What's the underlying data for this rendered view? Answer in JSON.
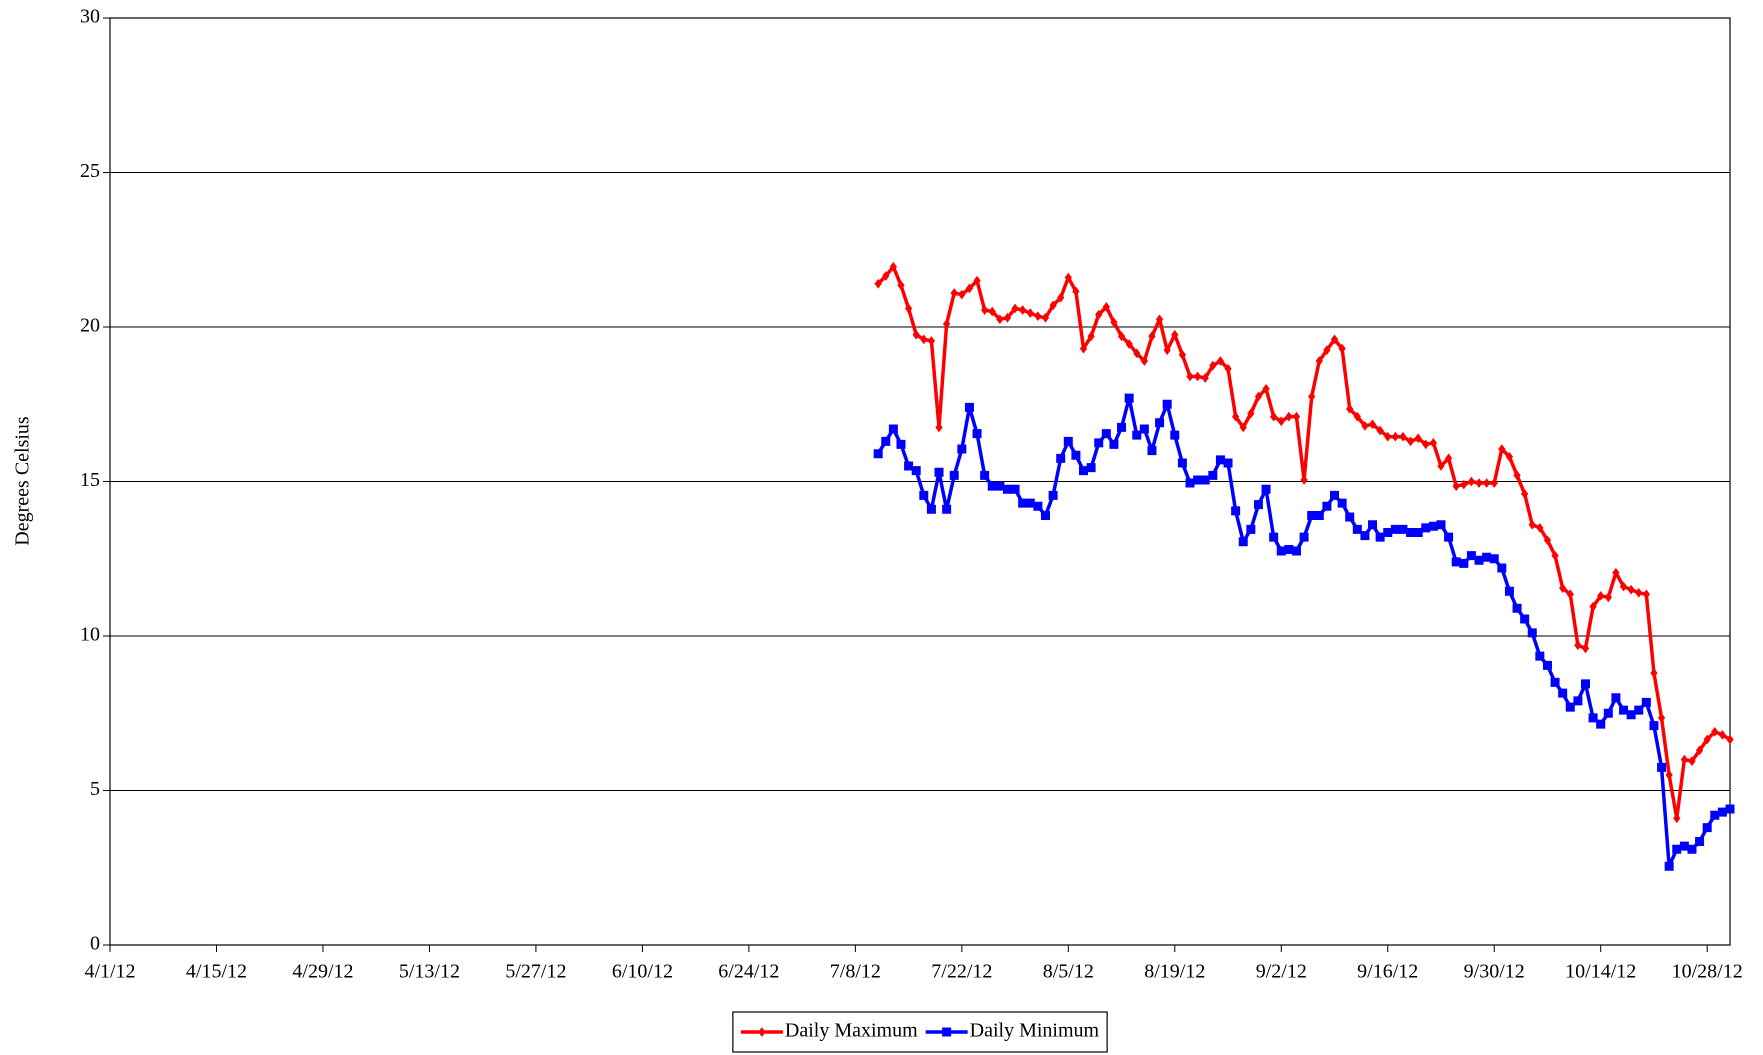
{
  "chart_data": {
    "type": "line",
    "y_label": "Degrees Celsius",
    "x": [
      "7/11/12",
      "7/12/12",
      "7/13/12",
      "7/14/12",
      "7/15/12",
      "7/16/12",
      "7/17/12",
      "7/18/12",
      "7/19/12",
      "7/20/12",
      "7/21/12",
      "7/22/12",
      "7/23/12",
      "7/24/12",
      "7/25/12",
      "7/26/12",
      "7/27/12",
      "7/28/12",
      "7/29/12",
      "7/30/12",
      "7/31/12",
      "8/1/12",
      "8/2/12",
      "8/3/12",
      "8/4/12",
      "8/5/12",
      "8/6/12",
      "8/7/12",
      "8/8/12",
      "8/9/12",
      "8/10/12",
      "8/11/12",
      "8/12/12",
      "8/13/12",
      "8/14/12",
      "8/15/12",
      "8/16/12",
      "8/17/12",
      "8/18/12",
      "8/19/12",
      "8/20/12",
      "8/21/12",
      "8/22/12",
      "8/23/12",
      "8/24/12",
      "8/25/12",
      "8/26/12",
      "8/27/12",
      "8/28/12",
      "8/29/12",
      "8/30/12",
      "8/31/12",
      "9/1/12",
      "9/2/12",
      "9/3/12",
      "9/4/12",
      "9/5/12",
      "9/6/12",
      "9/7/12",
      "9/8/12",
      "9/9/12",
      "9/10/12",
      "9/11/12",
      "9/12/12",
      "9/13/12",
      "9/14/12",
      "9/15/12",
      "9/16/12",
      "9/17/12",
      "9/18/12",
      "9/19/12",
      "9/20/12",
      "9/21/12",
      "9/22/12",
      "9/23/12",
      "9/24/12",
      "9/25/12",
      "9/26/12",
      "9/27/12",
      "9/28/12",
      "9/29/12",
      "9/30/12",
      "10/1/12",
      "10/2/12",
      "10/3/12",
      "10/4/12",
      "10/5/12",
      "10/6/12",
      "10/7/12",
      "10/8/12",
      "10/9/12",
      "10/10/12",
      "10/11/12",
      "10/12/12",
      "10/13/12",
      "10/14/12",
      "10/15/12",
      "10/16/12",
      "10/17/12",
      "10/18/12",
      "10/19/12",
      "10/20/12",
      "10/21/12",
      "10/22/12",
      "10/23/12",
      "10/24/12",
      "10/25/12",
      "10/26/12",
      "10/27/12",
      "10/28/12",
      "10/29/12",
      "10/30/12",
      "10/31/12"
    ],
    "series": [
      {
        "name": "Daily Maximum",
        "color": "#ff0000",
        "marker": "diamond",
        "values": [
          21.4,
          21.65,
          21.95,
          21.35,
          20.6,
          19.75,
          19.6,
          19.55,
          16.75,
          20.1,
          21.1,
          21.05,
          21.25,
          21.5,
          20.55,
          20.5,
          20.25,
          20.3,
          20.6,
          20.55,
          20.45,
          20.35,
          20.3,
          20.7,
          20.95,
          21.6,
          21.15,
          19.3,
          19.7,
          20.4,
          20.65,
          20.15,
          19.7,
          19.45,
          19.15,
          18.9,
          19.7,
          20.25,
          19.25,
          19.75,
          19.1,
          18.4,
          18.4,
          18.35,
          18.75,
          18.9,
          18.65,
          17.1,
          16.75,
          17.2,
          17.75,
          18.0,
          17.1,
          16.95,
          17.1,
          17.1,
          15.05,
          17.75,
          18.9,
          19.25,
          19.6,
          19.3,
          17.35,
          17.1,
          16.8,
          16.85,
          16.65,
          16.45,
          16.45,
          16.45,
          16.3,
          16.4,
          16.2,
          16.25,
          15.5,
          15.75,
          14.85,
          14.9,
          15.0,
          14.95,
          14.95,
          14.95,
          16.05,
          15.8,
          15.2,
          14.6,
          13.6,
          13.5,
          13.1,
          12.6,
          11.55,
          11.35,
          9.7,
          9.6,
          10.95,
          11.3,
          11.25,
          12.05,
          11.6,
          11.5,
          11.4,
          11.35,
          8.8,
          7.35,
          5.5,
          4.1,
          6.0,
          5.95,
          6.3,
          6.65,
          6.9,
          6.8,
          6.65
        ]
      },
      {
        "name": "Daily Minimum",
        "color": "#0000ff",
        "marker": "square",
        "values": [
          15.9,
          16.3,
          16.7,
          16.2,
          15.5,
          15.35,
          14.55,
          14.1,
          15.3,
          14.1,
          15.2,
          16.05,
          17.4,
          16.55,
          15.2,
          14.85,
          14.85,
          14.75,
          14.75,
          14.3,
          14.3,
          14.2,
          13.9,
          14.55,
          15.75,
          16.3,
          15.85,
          15.35,
          15.45,
          16.25,
          16.55,
          16.2,
          16.75,
          17.7,
          16.5,
          16.7,
          16.0,
          16.9,
          17.5,
          16.5,
          15.6,
          14.95,
          15.05,
          15.05,
          15.2,
          15.7,
          15.6,
          14.05,
          13.05,
          13.45,
          14.25,
          14.75,
          13.2,
          12.75,
          12.8,
          12.75,
          13.2,
          13.9,
          13.9,
          14.2,
          14.55,
          14.3,
          13.85,
          13.45,
          13.25,
          13.6,
          13.2,
          13.35,
          13.45,
          13.45,
          13.35,
          13.35,
          13.5,
          13.55,
          13.6,
          13.2,
          12.4,
          12.35,
          12.6,
          12.45,
          12.55,
          12.5,
          12.2,
          11.45,
          10.9,
          10.55,
          10.1,
          9.35,
          9.05,
          8.5,
          8.15,
          7.7,
          7.9,
          8.45,
          7.35,
          7.15,
          7.5,
          8.0,
          7.6,
          7.45,
          7.6,
          7.85,
          7.1,
          5.75,
          2.55,
          3.1,
          3.2,
          3.1,
          3.35,
          3.8,
          4.2,
          4.3,
          4.4
        ]
      }
    ],
    "xlim": [
      "4/1/12",
      "10/31/12"
    ],
    "xticks": [
      "4/1/12",
      "4/15/12",
      "4/29/12",
      "5/13/12",
      "5/27/12",
      "6/10/12",
      "6/24/12",
      "7/8/12",
      "7/22/12",
      "8/5/12",
      "8/19/12",
      "9/2/12",
      "9/16/12",
      "9/30/12",
      "10/14/12",
      "10/28/12"
    ],
    "ylim": [
      0,
      30
    ],
    "yticks": [
      0,
      5,
      10,
      15,
      20,
      25,
      30
    ],
    "grid": true,
    "legend": "bottom"
  }
}
